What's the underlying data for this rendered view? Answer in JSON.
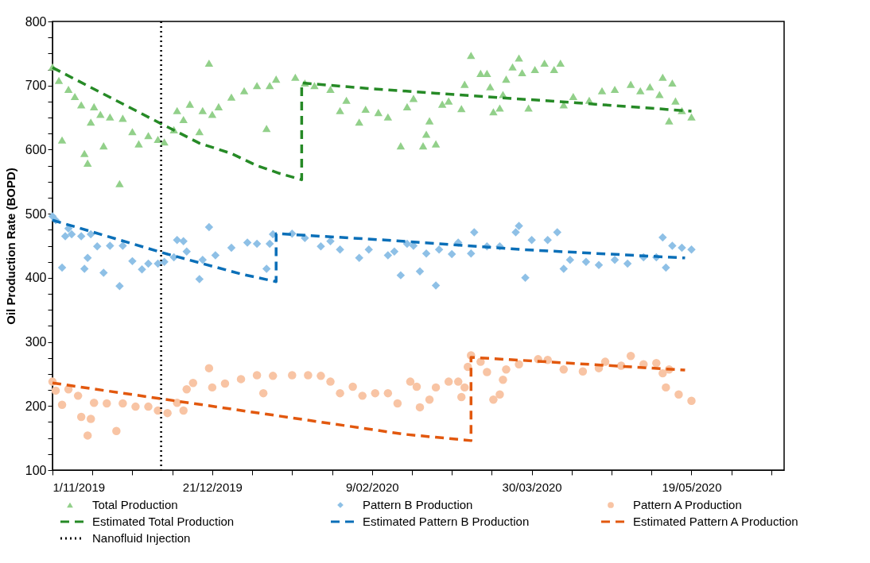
{
  "chart_data": {
    "type": "scatter",
    "ylabel": "Oil Production Rate (BOPD)",
    "legend": "bottom",
    "grid": false,
    "xlim": [
      "2019-11-01",
      "2020-06-17"
    ],
    "xticks": [
      {
        "value": "2019-11-01",
        "label": "1/11/2019"
      },
      {
        "value": "2019-11-13T12:00",
        "label": null
      },
      {
        "value": "2019-11-26",
        "label": null
      },
      {
        "value": "2019-12-08T12:00",
        "label": null
      },
      {
        "value": "2019-12-21",
        "label": "21/12/2019"
      },
      {
        "value": "2020-01-02T12:00",
        "label": null
      },
      {
        "value": "2020-01-15",
        "label": null
      },
      {
        "value": "2020-01-27T12:00",
        "label": null
      },
      {
        "value": "2020-02-09",
        "label": "9/02/2020"
      },
      {
        "value": "2020-02-21T12:00",
        "label": null
      },
      {
        "value": "2020-03-05",
        "label": null
      },
      {
        "value": "2020-03-17T12:00",
        "label": null
      },
      {
        "value": "2020-03-30",
        "label": "30/03/2020"
      },
      {
        "value": "2020-04-11T12:00",
        "label": null
      },
      {
        "value": "2020-04-24",
        "label": null
      },
      {
        "value": "2020-05-06T12:00",
        "label": null
      },
      {
        "value": "2020-05-19",
        "label": "19/05/2020"
      },
      {
        "value": "2020-05-31T12:00",
        "label": null
      },
      {
        "value": "2020-06-13",
        "label": null
      }
    ],
    "ylim": [
      100,
      800
    ],
    "yticks": [
      100,
      {
        "value": 125,
        "label": null
      },
      {
        "value": 150,
        "label": null
      },
      {
        "value": 175,
        "label": null
      },
      200,
      {
        "value": 225,
        "label": null
      },
      {
        "value": 250,
        "label": null
      },
      {
        "value": 275,
        "label": null
      },
      300,
      {
        "value": 325,
        "label": null
      },
      {
        "value": 350,
        "label": null
      },
      {
        "value": 375,
        "label": null
      },
      400,
      {
        "value": 425,
        "label": null
      },
      {
        "value": 450,
        "label": null
      },
      {
        "value": 475,
        "label": null
      },
      500,
      {
        "value": 525,
        "label": null
      },
      {
        "value": 550,
        "label": null
      },
      {
        "value": 575,
        "label": null
      },
      600,
      {
        "value": 625,
        "label": null
      },
      {
        "value": 650,
        "label": null
      },
      {
        "value": 675,
        "label": null
      },
      700,
      {
        "value": 725,
        "label": null
      },
      {
        "value": 750,
        "label": null
      },
      {
        "value": 775,
        "label": null
      },
      800
    ],
    "series": [
      {
        "name": "Total Production",
        "marker": "triangle",
        "color": "#92d08a",
        "x": [
          "2019-11-01",
          "2019-11-03",
          "2019-11-04",
          "2019-11-06",
          "2019-11-08",
          "2019-11-10",
          "2019-11-11",
          "2019-11-12",
          "2019-11-13",
          "2019-11-14",
          "2019-11-16",
          "2019-11-17",
          "2019-11-19",
          "2019-11-22",
          "2019-11-23",
          "2019-11-26",
          "2019-11-28",
          "2019-12-01",
          "2019-12-04",
          "2019-12-06",
          "2019-12-09",
          "2019-12-10",
          "2019-12-12",
          "2019-12-14",
          "2019-12-17",
          "2019-12-18",
          "2019-12-20",
          "2019-12-21",
          "2019-12-23",
          "2019-12-27",
          "2019-12-31",
          "2020-01-04",
          "2020-01-07",
          "2020-01-08",
          "2020-01-10",
          "2020-01-16",
          "2020-01-19",
          "2020-01-22",
          "2020-01-27",
          "2020-01-30",
          "2020-02-01",
          "2020-02-05",
          "2020-02-07",
          "2020-02-11",
          "2020-02-14",
          "2020-02-18",
          "2020-02-20",
          "2020-02-22",
          "2020-02-25",
          "2020-02-26",
          "2020-02-27",
          "2020-02-29",
          "2020-03-02",
          "2020-03-04",
          "2020-03-08",
          "2020-03-09",
          "2020-03-11",
          "2020-03-14",
          "2020-03-16",
          "2020-03-17",
          "2020-03-18",
          "2020-03-20",
          "2020-03-21",
          "2020-03-22",
          "2020-03-24",
          "2020-03-26",
          "2020-03-27",
          "2020-03-29",
          "2020-03-31",
          "2020-04-03",
          "2020-04-06",
          "2020-04-08",
          "2020-04-09",
          "2020-04-12",
          "2020-04-17",
          "2020-04-21",
          "2020-04-25",
          "2020-04-30",
          "2020-05-03",
          "2020-05-06",
          "2020-05-09",
          "2020-05-10",
          "2020-05-12",
          "2020-05-13",
          "2020-05-14",
          "2020-05-16",
          "2020-05-19"
        ],
        "values": [
          729,
          708,
          615,
          694,
          683,
          670,
          594,
          579,
          643,
          667,
          655,
          606,
          651,
          547,
          649,
          628,
          609,
          622,
          616,
          612,
          631,
          661,
          647,
          671,
          628,
          661,
          735,
          655,
          667,
          682,
          692,
          700,
          633,
          700,
          710,
          713,
          704,
          700,
          694,
          661,
          677,
          643,
          663,
          658,
          651,
          606,
          667,
          680,
          606,
          624,
          645,
          609,
          671,
          676,
          664,
          702,
          747,
          719,
          719,
          698,
          659,
          665,
          686,
          710,
          729,
          743,
          720,
          665,
          725,
          735,
          725,
          735,
          670,
          683,
          677,
          692,
          694,
          702,
          692,
          698,
          686,
          713,
          645,
          704,
          676,
          661,
          651
        ]
      },
      {
        "name": "Pattern B Production",
        "marker": "diamond",
        "color": "#8ec0e6",
        "x": [
          "2019-11-01",
          "2019-11-02",
          "2019-11-04",
          "2019-11-05",
          "2019-11-06",
          "2019-11-07",
          "2019-11-10",
          "2019-11-11",
          "2019-11-12",
          "2019-11-13",
          "2019-11-15",
          "2019-11-17",
          "2019-11-19",
          "2019-11-22",
          "2019-11-23",
          "2019-11-26",
          "2019-11-29",
          "2019-12-01",
          "2019-12-04",
          "2019-12-06",
          "2019-12-09",
          "2019-12-10",
          "2019-12-12",
          "2019-12-13",
          "2019-12-17",
          "2019-12-18",
          "2019-12-20",
          "2019-12-22",
          "2019-12-27",
          "2020-01-01",
          "2020-01-04",
          "2020-01-07",
          "2020-01-08",
          "2020-01-09",
          "2020-01-15",
          "2020-01-19",
          "2020-01-24",
          "2020-01-27",
          "2020-01-30",
          "2020-02-05",
          "2020-02-08",
          "2020-02-14",
          "2020-02-16",
          "2020-02-18",
          "2020-02-20",
          "2020-02-22",
          "2020-02-24",
          "2020-02-26",
          "2020-02-29",
          "2020-03-01",
          "2020-03-05",
          "2020-03-07",
          "2020-03-11",
          "2020-03-12",
          "2020-03-16",
          "2020-03-20",
          "2020-03-25",
          "2020-03-26",
          "2020-03-28",
          "2020-03-30",
          "2020-04-04",
          "2020-04-07",
          "2020-04-09",
          "2020-04-11",
          "2020-04-16",
          "2020-04-20",
          "2020-04-25",
          "2020-04-29",
          "2020-05-04",
          "2020-05-08",
          "2020-05-10",
          "2020-05-11",
          "2020-05-13",
          "2020-05-16",
          "2020-05-19"
        ],
        "values": [
          496,
          490,
          416,
          465,
          477,
          468,
          465,
          414,
          431,
          468,
          449,
          408,
          450,
          387,
          450,
          426,
          413,
          422,
          422,
          425,
          432,
          459,
          457,
          441,
          398,
          428,
          479,
          435,
          447,
          455,
          453,
          414,
          453,
          468,
          469,
          462,
          449,
          457,
          444,
          431,
          444,
          435,
          441,
          404,
          453,
          450,
          410,
          438,
          388,
          444,
          437,
          455,
          438,
          471,
          449,
          449,
          471,
          481,
          400,
          459,
          459,
          471,
          414,
          428,
          425,
          420,
          428,
          422,
          432,
          432,
          463,
          416,
          450,
          447,
          444
        ]
      },
      {
        "name": "Pattern A Production",
        "marker": "circle",
        "color": "#f8c4a4",
        "x": [
          "2019-11-01",
          "2019-11-02",
          "2019-11-04",
          "2019-11-06",
          "2019-11-09",
          "2019-11-10",
          "2019-11-12",
          "2019-11-13",
          "2019-11-14",
          "2019-11-18",
          "2019-11-21",
          "2019-11-23",
          "2019-11-27",
          "2019-12-01",
          "2019-12-04",
          "2019-12-07",
          "2019-12-10",
          "2019-12-12",
          "2019-12-13",
          "2019-12-15",
          "2019-12-20",
          "2019-12-21",
          "2019-12-25",
          "2019-12-30",
          "2020-01-04",
          "2020-01-06",
          "2020-01-09",
          "2020-01-15",
          "2020-01-20",
          "2020-01-24",
          "2020-01-27",
          "2020-01-30",
          "2020-02-03",
          "2020-02-06",
          "2020-02-10",
          "2020-02-14",
          "2020-02-17",
          "2020-02-21",
          "2020-02-23",
          "2020-02-24",
          "2020-02-27",
          "2020-02-29",
          "2020-03-04",
          "2020-03-07",
          "2020-03-08",
          "2020-03-09",
          "2020-03-10",
          "2020-03-11",
          "2020-03-14",
          "2020-03-16",
          "2020-03-18",
          "2020-03-20",
          "2020-03-21",
          "2020-03-22",
          "2020-03-26",
          "2020-04-01",
          "2020-04-04",
          "2020-04-09",
          "2020-04-15",
          "2020-04-20",
          "2020-04-22",
          "2020-04-27",
          "2020-04-30",
          "2020-05-04",
          "2020-05-08",
          "2020-05-10",
          "2020-05-11",
          "2020-05-12",
          "2020-05-15",
          "2020-05-19"
        ],
        "values": [
          238,
          224,
          202,
          226,
          216,
          183,
          154,
          180,
          205,
          204,
          161,
          204,
          199,
          199,
          193,
          189,
          205,
          193,
          226,
          236,
          259,
          229,
          235,
          242,
          248,
          220,
          247,
          248,
          248,
          247,
          238,
          220,
          230,
          216,
          220,
          220,
          204,
          238,
          230,
          198,
          210,
          229,
          238,
          238,
          214,
          229,
          261,
          279,
          269,
          253,
          210,
          218,
          241,
          257,
          265,
          273,
          272,
          257,
          254,
          259,
          269,
          263,
          278,
          265,
          267,
          251,
          229,
          257,
          218,
          208
        ]
      },
      {
        "name": "Estimated Total Production",
        "type": "line",
        "line_style": "dashed",
        "color": "#268a26",
        "x": [
          "2019-11-01",
          "2019-12-04",
          "2019-12-17",
          "2019-12-27",
          "2020-01-04",
          "2020-01-11",
          "2020-01-18",
          "2020-01-18",
          "2020-02-09",
          "2020-02-29",
          "2020-04-13",
          "2020-05-19"
        ],
        "values": [
          728,
          643,
          610,
          594,
          575,
          563,
          553,
          704,
          695,
          688,
          673,
          660
        ]
      },
      {
        "name": "Estimated Pattern B Production",
        "type": "line",
        "line_style": "dashed",
        "color": "#0a6fb8",
        "x": [
          "2019-11-01",
          "2019-12-07",
          "2019-12-30",
          "2020-01-10",
          "2020-01-10",
          "2020-02-13",
          "2020-03-27",
          "2020-05-17"
        ],
        "values": [
          490,
          437,
          406,
          394,
          469,
          459,
          444,
          431
        ]
      },
      {
        "name": "Estimated Pattern A Production",
        "type": "line",
        "line_style": "dashed",
        "color": "#e2580e",
        "x": [
          "2019-11-01",
          "2020-02-19",
          "2020-03-11",
          "2020-03-11",
          "2020-05-17"
        ],
        "values": [
          236,
          156,
          146,
          276,
          256
        ]
      }
    ],
    "ref_lines": [
      {
        "axis": "x",
        "value": "2019-12-05",
        "label": "Nanofluid Injection",
        "color": "#000000",
        "line_style": "dotted"
      }
    ]
  }
}
